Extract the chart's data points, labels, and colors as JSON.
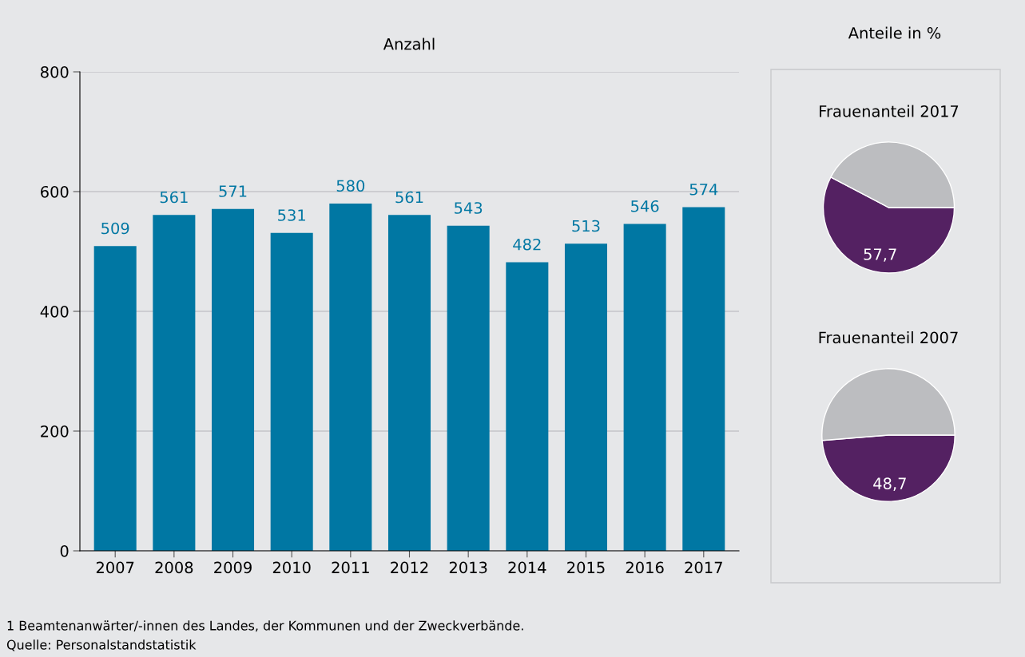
{
  "chart_data": [
    {
      "type": "bar",
      "title": "Anzahl",
      "categories": [
        "2007",
        "2008",
        "2009",
        "2010",
        "2011",
        "2012",
        "2013",
        "2014",
        "2015",
        "2016",
        "2017"
      ],
      "values": [
        509,
        561,
        571,
        531,
        580,
        561,
        543,
        482,
        513,
        546,
        574
      ],
      "color": "#0077a3",
      "ylim": [
        0,
        800
      ],
      "yticks": [
        0,
        200,
        400,
        600,
        800
      ],
      "grid": "y",
      "data_labels": true,
      "annotations": [
        "1 Beamtenanwärter/-innen des Landes, der Kommunen und der Zweckverbände.",
        "Quelle: Personalstandstatistik"
      ]
    },
    {
      "type": "pie",
      "title": "Frauenanteil 2017",
      "annotations": [
        "Anteile in %"
      ],
      "categories": [
        null,
        null
      ],
      "values": [
        57.7,
        42.3
      ],
      "colors": [
        "#542162",
        "#bcbdc0"
      ],
      "value_labels": [
        "57,7",
        null
      ]
    },
    {
      "type": "pie",
      "title": "Frauenanteil 2007",
      "categories": [
        null,
        null
      ],
      "values": [
        48.7,
        51.3
      ],
      "colors": [
        "#542162",
        "#bcbdc0"
      ],
      "value_labels": [
        "48,7",
        null
      ]
    }
  ]
}
